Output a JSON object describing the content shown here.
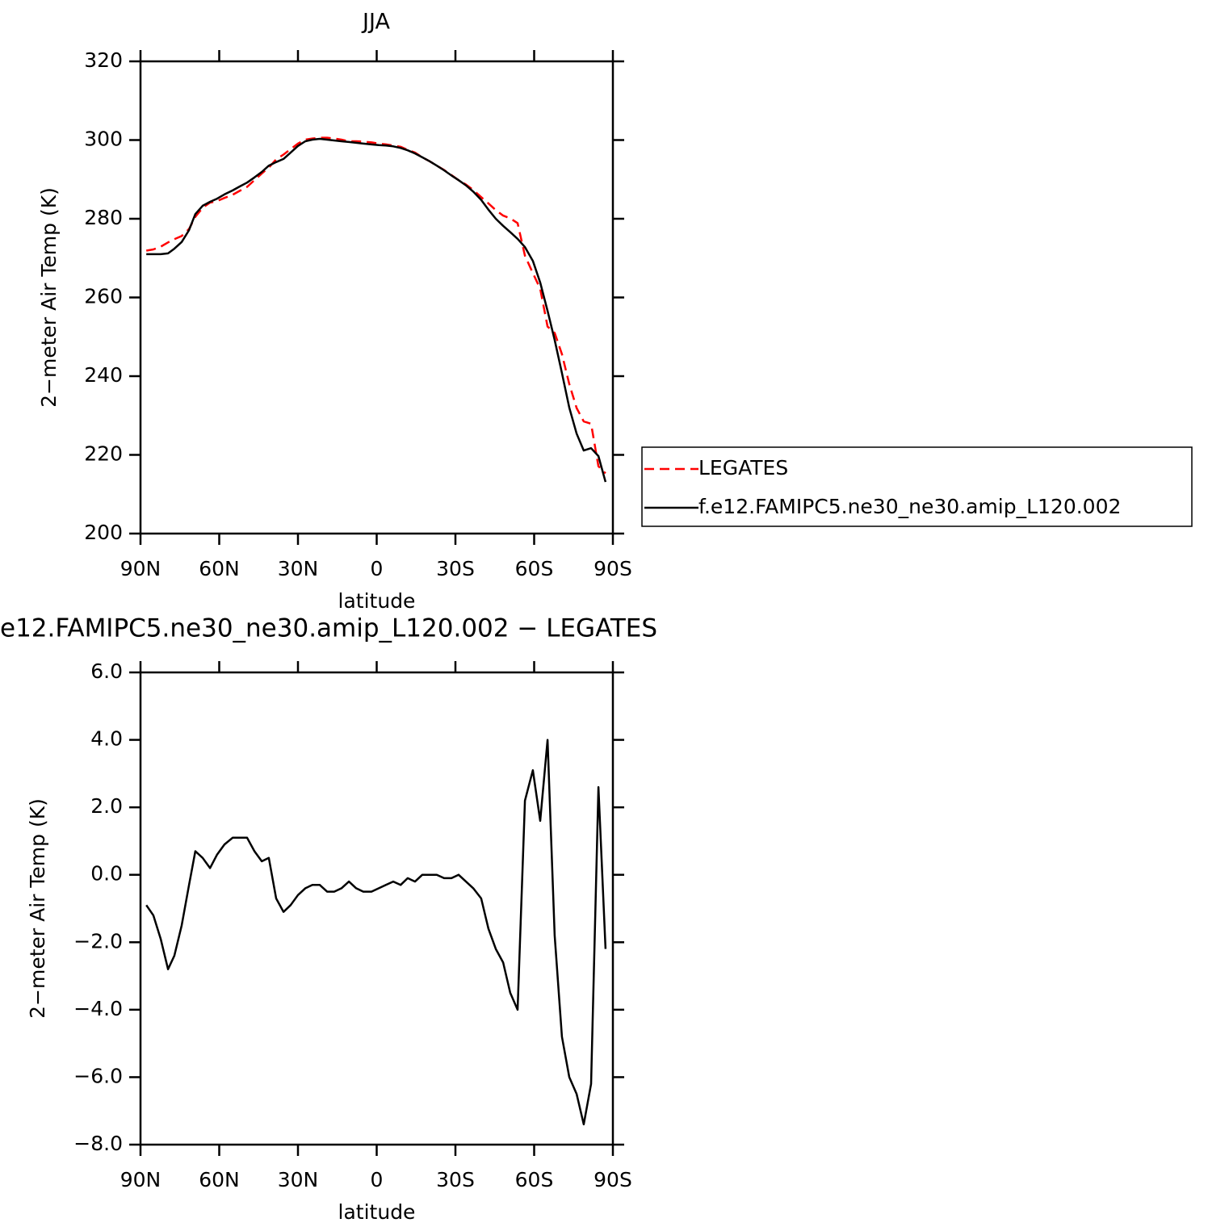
{
  "chart_data": [
    {
      "type": "line",
      "title": "JJA",
      "xlabel": "latitude",
      "ylabel": "2−meter Air Temp (K)",
      "x": [
        87.8,
        85.1,
        82.3,
        79.5,
        77.1,
        74.3,
        71.5,
        69.1,
        66.3,
        63.5,
        60.8,
        58.0,
        54.9,
        52.2,
        49.4,
        46.6,
        43.8,
        41.1,
        38.3,
        35.5,
        32.8,
        30.0,
        27.2,
        24.5,
        21.7,
        18.9,
        16.2,
        13.4,
        10.6,
        7.8,
        5.1,
        2.0,
        -0.8,
        -3.5,
        -6.3,
        -9.1,
        -11.8,
        -14.6,
        -17.4,
        -20.2,
        -22.9,
        -25.7,
        -28.5,
        -31.2,
        -34.0,
        -36.8,
        -39.8,
        -42.6,
        -45.4,
        -48.2,
        -50.9,
        -53.7,
        -56.5,
        -59.5,
        -62.3,
        -65.1,
        -67.8,
        -70.6,
        -73.4,
        -76.2,
        -78.9,
        -81.7,
        -84.5,
        -87.2
      ],
      "series": [
        {
          "name": "LEGATES",
          "color": "#ff0000",
          "line_style": "dashed",
          "values": [
            271.9,
            272.2,
            272.9,
            274.0,
            274.8,
            275.6,
            277.4,
            280.5,
            282.8,
            284.1,
            284.5,
            285.3,
            286.1,
            287.1,
            288.1,
            289.8,
            291.5,
            293.0,
            295.1,
            296.3,
            297.7,
            299.1,
            300.1,
            300.4,
            300.6,
            300.6,
            300.4,
            300.1,
            299.7,
            299.7,
            299.6,
            299.4,
            299.1,
            298.9,
            298.6,
            298.3,
            297.5,
            296.8,
            295.6,
            294.6,
            293.5,
            292.4,
            291.1,
            289.8,
            288.7,
            287.3,
            285.5,
            283.9,
            282.2,
            280.8,
            280.1,
            278.9,
            270.6,
            266.2,
            262.2,
            252.6,
            251.0,
            245.6,
            238.0,
            231.9,
            228.5,
            227.9,
            217.1,
            215.3
          ]
        },
        {
          "name": "f.e12.FAMIPC5.ne30_ne30.amip_L120.002",
          "color": "#000000",
          "line_style": "solid",
          "values": [
            271.0,
            271.0,
            271.0,
            271.2,
            272.4,
            274.1,
            277.1,
            281.2,
            283.3,
            284.3,
            285.1,
            286.2,
            287.2,
            288.2,
            289.2,
            290.5,
            291.9,
            293.5,
            294.4,
            295.2,
            296.8,
            298.5,
            299.7,
            300.1,
            300.3,
            300.1,
            299.9,
            299.7,
            299.5,
            299.3,
            299.1,
            298.9,
            298.7,
            298.6,
            298.4,
            298.0,
            297.4,
            296.6,
            295.6,
            294.6,
            293.5,
            292.3,
            291.0,
            289.8,
            288.5,
            286.9,
            284.8,
            282.3,
            280.0,
            278.2,
            276.6,
            274.9,
            272.8,
            269.3,
            263.8,
            256.6,
            249.2,
            240.8,
            232.0,
            225.4,
            221.1,
            221.7,
            219.7,
            213.1
          ]
        }
      ],
      "xlim": [
        90,
        -90
      ],
      "xticks": [
        {
          "value": 90,
          "label": "90N"
        },
        {
          "value": 60,
          "label": "60N"
        },
        {
          "value": 30,
          "label": "30N"
        },
        0,
        {
          "value": -30,
          "label": "30S"
        },
        {
          "value": -60,
          "label": "60S"
        },
        {
          "value": -90,
          "label": "90S"
        }
      ],
      "ylim": [
        200,
        320
      ],
      "yticks": [
        200,
        220,
        240,
        260,
        280,
        300,
        320
      ],
      "legend": "right"
    },
    {
      "type": "line",
      "title": "e12.FAMIPC5.ne30_ne30.amip_L120.002 − LEGATES",
      "xlabel": "latitude",
      "ylabel": "2−meter Air Temp (K)",
      "x": [
        87.8,
        85.1,
        82.3,
        79.5,
        77.1,
        74.3,
        71.5,
        69.1,
        66.3,
        63.5,
        60.8,
        58.0,
        54.9,
        52.2,
        49.4,
        46.6,
        43.8,
        41.1,
        38.3,
        35.5,
        32.8,
        30.0,
        27.2,
        24.5,
        21.7,
        18.9,
        16.2,
        13.4,
        10.6,
        7.8,
        5.1,
        2.0,
        -0.8,
        -3.5,
        -6.3,
        -9.1,
        -11.8,
        -14.6,
        -17.4,
        -20.2,
        -22.9,
        -25.7,
        -28.5,
        -31.2,
        -34.0,
        -36.8,
        -39.8,
        -42.6,
        -45.4,
        -48.2,
        -50.9,
        -53.7,
        -56.5,
        -59.5,
        -62.3,
        -65.1,
        -67.8,
        -70.6,
        -73.4,
        -76.2,
        -78.9,
        -81.7,
        -84.5,
        -87.2
      ],
      "values": [
        -0.9,
        -1.2,
        -1.9,
        -2.8,
        -2.4,
        -1.5,
        -0.3,
        0.7,
        0.5,
        0.2,
        0.6,
        0.9,
        1.1,
        1.1,
        1.1,
        0.7,
        0.4,
        0.5,
        -0.7,
        -1.1,
        -0.9,
        -0.6,
        -0.4,
        -0.3,
        -0.3,
        -0.5,
        -0.5,
        -0.4,
        -0.2,
        -0.4,
        -0.5,
        -0.5,
        -0.4,
        -0.3,
        -0.2,
        -0.3,
        -0.1,
        -0.2,
        0.0,
        0.0,
        0.0,
        -0.1,
        -0.1,
        0.0,
        -0.2,
        -0.4,
        -0.7,
        -1.6,
        -2.2,
        -2.6,
        -3.5,
        -4.0,
        2.2,
        3.1,
        1.6,
        4.0,
        -1.8,
        -4.8,
        -6.0,
        -6.5,
        -7.4,
        -6.2,
        2.6,
        -2.2
      ],
      "color": "#000000",
      "xlim": [
        90,
        -90
      ],
      "xticks": [
        {
          "value": 90,
          "label": "90N"
        },
        {
          "value": 60,
          "label": "60N"
        },
        {
          "value": 30,
          "label": "30N"
        },
        0,
        {
          "value": -30,
          "label": "30S"
        },
        {
          "value": -60,
          "label": "60S"
        },
        {
          "value": -90,
          "label": "90S"
        }
      ],
      "ylim": [
        -8,
        6
      ],
      "yticks": [
        {
          "value": -8,
          "label": "−8.0"
        },
        {
          "value": -6,
          "label": "−6.0"
        },
        {
          "value": -4,
          "label": "−4.0"
        },
        {
          "value": -2,
          "label": "−2.0"
        },
        {
          "value": 0,
          "label": "0.0"
        },
        {
          "value": 2,
          "label": "2.0"
        },
        {
          "value": 4,
          "label": "4.0"
        },
        {
          "value": 6,
          "label": "6.0"
        }
      ]
    }
  ]
}
